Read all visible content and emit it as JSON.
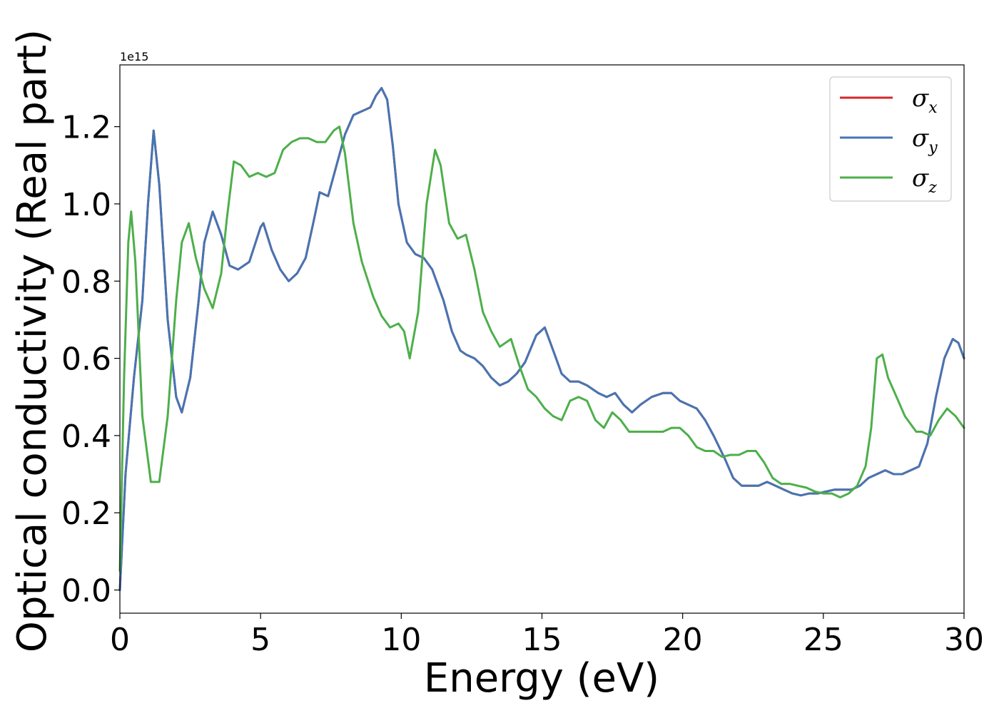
{
  "chart_data": {
    "type": "line",
    "xlabel": "Energy (eV)",
    "ylabel": "Optical conductivity (Real part)",
    "y_offset_text": "1e15",
    "xlim": [
      0,
      30
    ],
    "ylim": [
      -0.06,
      1.36
    ],
    "x_ticks": [
      0,
      5,
      10,
      15,
      20,
      25,
      30
    ],
    "x_tick_labels": [
      "0",
      "5",
      "10",
      "15",
      "20",
      "25",
      "30"
    ],
    "y_ticks": [
      0.0,
      0.2,
      0.4,
      0.6,
      0.8,
      1.0,
      1.2
    ],
    "y_tick_labels": [
      "0.0",
      "0.2",
      "0.4",
      "0.6",
      "0.8",
      "1.0",
      "1.2"
    ],
    "grid": false,
    "legend_position": "top-right",
    "series": [
      {
        "name": "σ",
        "subscript": "x",
        "color": "#d62728",
        "x": [
          0,
          0.2,
          0.5,
          0.8,
          1.0,
          1.2,
          1.4,
          1.7,
          2.0,
          2.2,
          2.5,
          2.8,
          3.0,
          3.3,
          3.6,
          3.9,
          4.2,
          4.6,
          5.0,
          5.1,
          5.4,
          5.7,
          6.0,
          6.3,
          6.6,
          6.9,
          7.1,
          7.4,
          7.7,
          8.0,
          8.3,
          8.6,
          8.9,
          9.1,
          9.3,
          9.5,
          9.7,
          9.9,
          10.2,
          10.5,
          10.8,
          11.1,
          11.5,
          11.8,
          12.1,
          12.3,
          12.6,
          12.9,
          13.2,
          13.5,
          13.8,
          14.1,
          14.4,
          14.8,
          15.1,
          15.4,
          15.7,
          16.0,
          16.3,
          16.6,
          17.0,
          17.3,
          17.6,
          17.9,
          18.2,
          18.5,
          18.9,
          19.3,
          19.6,
          19.9,
          20.2,
          20.5,
          20.8,
          21.1,
          21.5,
          21.8,
          22.1,
          22.4,
          22.7,
          23.0,
          23.3,
          23.6,
          23.9,
          24.2,
          24.5,
          24.8,
          25.1,
          25.4,
          25.7,
          26.0,
          26.3,
          26.6,
          26.9,
          27.2,
          27.5,
          27.8,
          28.1,
          28.4,
          28.7,
          29.0,
          29.3,
          29.6,
          29.8,
          30.0
        ],
        "y": [
          0.0,
          0.3,
          0.55,
          0.75,
          1.0,
          1.19,
          1.05,
          0.7,
          0.5,
          0.46,
          0.55,
          0.75,
          0.9,
          0.98,
          0.92,
          0.84,
          0.83,
          0.85,
          0.94,
          0.95,
          0.88,
          0.83,
          0.8,
          0.82,
          0.86,
          0.96,
          1.03,
          1.02,
          1.1,
          1.18,
          1.23,
          1.24,
          1.25,
          1.28,
          1.3,
          1.27,
          1.15,
          1.0,
          0.9,
          0.87,
          0.86,
          0.83,
          0.75,
          0.67,
          0.62,
          0.61,
          0.6,
          0.58,
          0.55,
          0.53,
          0.54,
          0.56,
          0.59,
          0.66,
          0.68,
          0.62,
          0.56,
          0.54,
          0.54,
          0.53,
          0.51,
          0.5,
          0.51,
          0.48,
          0.46,
          0.48,
          0.5,
          0.51,
          0.51,
          0.49,
          0.48,
          0.47,
          0.44,
          0.4,
          0.34,
          0.29,
          0.27,
          0.27,
          0.27,
          0.28,
          0.27,
          0.26,
          0.25,
          0.245,
          0.25,
          0.25,
          0.255,
          0.26,
          0.26,
          0.26,
          0.27,
          0.29,
          0.3,
          0.31,
          0.3,
          0.3,
          0.31,
          0.32,
          0.38,
          0.5,
          0.6,
          0.65,
          0.64,
          0.6
        ]
      },
      {
        "name": "σ",
        "subscript": "y",
        "color": "#4575b4",
        "x": [
          0,
          0.2,
          0.5,
          0.8,
          1.0,
          1.2,
          1.4,
          1.7,
          2.0,
          2.2,
          2.5,
          2.8,
          3.0,
          3.3,
          3.6,
          3.9,
          4.2,
          4.6,
          5.0,
          5.1,
          5.4,
          5.7,
          6.0,
          6.3,
          6.6,
          6.9,
          7.1,
          7.4,
          7.7,
          8.0,
          8.3,
          8.6,
          8.9,
          9.1,
          9.3,
          9.5,
          9.7,
          9.9,
          10.2,
          10.5,
          10.8,
          11.1,
          11.5,
          11.8,
          12.1,
          12.3,
          12.6,
          12.9,
          13.2,
          13.5,
          13.8,
          14.1,
          14.4,
          14.8,
          15.1,
          15.4,
          15.7,
          16.0,
          16.3,
          16.6,
          17.0,
          17.3,
          17.6,
          17.9,
          18.2,
          18.5,
          18.9,
          19.3,
          19.6,
          19.9,
          20.2,
          20.5,
          20.8,
          21.1,
          21.5,
          21.8,
          22.1,
          22.4,
          22.7,
          23.0,
          23.3,
          23.6,
          23.9,
          24.2,
          24.5,
          24.8,
          25.1,
          25.4,
          25.7,
          26.0,
          26.3,
          26.6,
          26.9,
          27.2,
          27.5,
          27.8,
          28.1,
          28.4,
          28.7,
          29.0,
          29.3,
          29.6,
          29.8,
          30.0
        ],
        "y": [
          0.0,
          0.3,
          0.55,
          0.75,
          1.0,
          1.19,
          1.05,
          0.7,
          0.5,
          0.46,
          0.55,
          0.75,
          0.9,
          0.98,
          0.92,
          0.84,
          0.83,
          0.85,
          0.94,
          0.95,
          0.88,
          0.83,
          0.8,
          0.82,
          0.86,
          0.96,
          1.03,
          1.02,
          1.1,
          1.18,
          1.23,
          1.24,
          1.25,
          1.28,
          1.3,
          1.27,
          1.15,
          1.0,
          0.9,
          0.87,
          0.86,
          0.83,
          0.75,
          0.67,
          0.62,
          0.61,
          0.6,
          0.58,
          0.55,
          0.53,
          0.54,
          0.56,
          0.59,
          0.66,
          0.68,
          0.62,
          0.56,
          0.54,
          0.54,
          0.53,
          0.51,
          0.5,
          0.51,
          0.48,
          0.46,
          0.48,
          0.5,
          0.51,
          0.51,
          0.49,
          0.48,
          0.47,
          0.44,
          0.4,
          0.34,
          0.29,
          0.27,
          0.27,
          0.27,
          0.28,
          0.27,
          0.26,
          0.25,
          0.245,
          0.25,
          0.25,
          0.255,
          0.26,
          0.26,
          0.26,
          0.27,
          0.29,
          0.3,
          0.31,
          0.3,
          0.3,
          0.31,
          0.32,
          0.38,
          0.5,
          0.6,
          0.65,
          0.64,
          0.6
        ]
      },
      {
        "name": "σ",
        "subscript": "z",
        "color": "#4daf4a",
        "x": [
          0,
          0.15,
          0.3,
          0.4,
          0.55,
          0.8,
          1.1,
          1.4,
          1.7,
          2.0,
          2.2,
          2.45,
          2.7,
          3.0,
          3.3,
          3.6,
          3.8,
          4.05,
          4.3,
          4.6,
          4.9,
          5.2,
          5.5,
          5.8,
          6.1,
          6.4,
          6.7,
          7.0,
          7.3,
          7.6,
          7.8,
          8.0,
          8.3,
          8.6,
          9.0,
          9.3,
          9.6,
          9.9,
          10.1,
          10.3,
          10.6,
          10.9,
          11.2,
          11.4,
          11.7,
          12.0,
          12.3,
          12.6,
          12.9,
          13.2,
          13.5,
          13.9,
          14.2,
          14.5,
          14.8,
          15.1,
          15.4,
          15.7,
          16.0,
          16.3,
          16.6,
          16.9,
          17.2,
          17.5,
          17.8,
          18.1,
          18.4,
          18.7,
          19.0,
          19.3,
          19.6,
          19.9,
          20.2,
          20.5,
          20.8,
          21.1,
          21.4,
          21.7,
          22.0,
          22.3,
          22.6,
          22.9,
          23.2,
          23.5,
          23.8,
          24.1,
          24.4,
          24.7,
          25.0,
          25.3,
          25.6,
          25.9,
          26.2,
          26.5,
          26.7,
          26.9,
          27.1,
          27.3,
          27.6,
          27.9,
          28.1,
          28.3,
          28.5,
          28.8,
          29.1,
          29.4,
          29.7,
          30.0
        ],
        "y": [
          0.05,
          0.55,
          0.9,
          0.98,
          0.85,
          0.45,
          0.28,
          0.28,
          0.45,
          0.75,
          0.9,
          0.95,
          0.86,
          0.78,
          0.73,
          0.82,
          0.96,
          1.11,
          1.1,
          1.07,
          1.08,
          1.07,
          1.08,
          1.14,
          1.16,
          1.17,
          1.17,
          1.16,
          1.16,
          1.19,
          1.2,
          1.13,
          0.95,
          0.85,
          0.76,
          0.71,
          0.68,
          0.69,
          0.67,
          0.6,
          0.72,
          1.0,
          1.14,
          1.1,
          0.95,
          0.91,
          0.92,
          0.83,
          0.72,
          0.67,
          0.63,
          0.65,
          0.58,
          0.52,
          0.5,
          0.47,
          0.45,
          0.44,
          0.49,
          0.5,
          0.49,
          0.44,
          0.42,
          0.46,
          0.44,
          0.41,
          0.41,
          0.41,
          0.41,
          0.41,
          0.42,
          0.42,
          0.4,
          0.37,
          0.36,
          0.36,
          0.345,
          0.35,
          0.35,
          0.36,
          0.36,
          0.33,
          0.29,
          0.275,
          0.275,
          0.27,
          0.265,
          0.255,
          0.25,
          0.25,
          0.24,
          0.25,
          0.27,
          0.32,
          0.42,
          0.6,
          0.61,
          0.55,
          0.5,
          0.45,
          0.43,
          0.41,
          0.41,
          0.4,
          0.44,
          0.47,
          0.45,
          0.42
        ]
      }
    ]
  }
}
